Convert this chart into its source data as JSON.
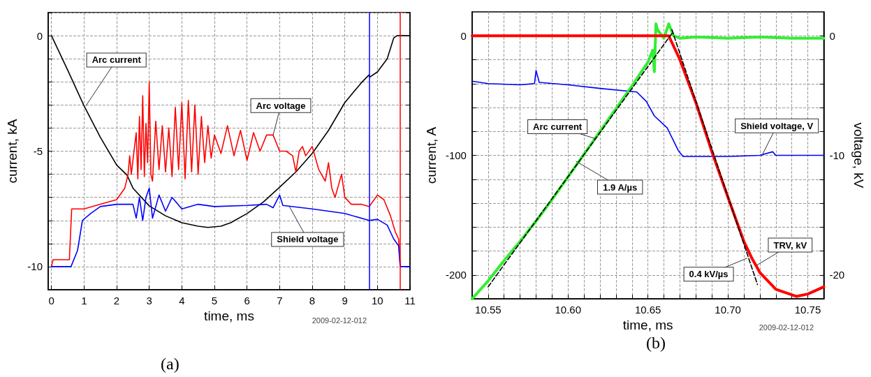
{
  "chart_data": [
    {
      "type": "line",
      "title": "(a)",
      "xlabel": "time, ms",
      "ylabel": "current, kA",
      "xlim": [
        -0.1,
        11
      ],
      "xticks": [
        0,
        1,
        2,
        3,
        4,
        5,
        6,
        7,
        8,
        9,
        10,
        11
      ],
      "ylim": [
        -11,
        1
      ],
      "yticks": [
        {
          "value": 1,
          "label": null
        },
        0,
        {
          "value": -1,
          "label": null
        },
        {
          "value": -2,
          "label": null
        },
        {
          "value": -3,
          "label": null
        },
        {
          "value": -4,
          "label": null
        },
        -5,
        {
          "value": -6,
          "label": null
        },
        {
          "value": -7,
          "label": null
        },
        {
          "value": -8,
          "label": null
        },
        {
          "value": -9,
          "label": null
        },
        -10
      ],
      "grid": true,
      "marker": "none",
      "series": [
        {
          "color": "#000000",
          "x": [
            0,
            0.5,
            1,
            1.5,
            2,
            2.32,
            2.5,
            3,
            3.5,
            4,
            4.5,
            4.8,
            5.2,
            5.5,
            6,
            6.5,
            7,
            7.5,
            8,
            8.5,
            9,
            9.5,
            9.74,
            9.76,
            10,
            10.3,
            10.5,
            10.6,
            11
          ],
          "values": [
            0,
            -1.5,
            -3.04,
            -4.4,
            -5.6,
            -6.04,
            -6.6,
            -7.37,
            -7.8,
            -8.1,
            -8.25,
            -8.3,
            -8.25,
            -8.1,
            -7.7,
            -7.2,
            -6.56,
            -5.9,
            -5.1,
            -4.1,
            -2.9,
            -2.05,
            -1.7,
            -1.8,
            -1.57,
            -1.0,
            -0.1,
            0,
            0
          ]
        },
        {
          "color": "#ff0000",
          "x": [
            0,
            0.05,
            0.55,
            0.62,
            1.0,
            1.5,
            2.0,
            2.25,
            2.35,
            2.4,
            2.45,
            2.6,
            2.65,
            2.7,
            2.75,
            2.8,
            2.85,
            2.9,
            2.95,
            3.0,
            3.05,
            3.1,
            3.2,
            3.3,
            3.4,
            3.5,
            3.6,
            3.7,
            3.8,
            3.9,
            4.0,
            4.1,
            4.2,
            4.3,
            4.4,
            4.5,
            4.6,
            4.7,
            4.8,
            4.9,
            5.0,
            5.2,
            5.4,
            5.6,
            5.8,
            6.0,
            6.2,
            6.4,
            6.6,
            6.8,
            7.0,
            7.2,
            7.4,
            7.5,
            7.6,
            7.7,
            7.8,
            8.0,
            8.2,
            8.4,
            8.5,
            8.6,
            8.7,
            8.8,
            8.9,
            9.0,
            9.2,
            9.5,
            9.75,
            9.9,
            10.0,
            10.2,
            10.4,
            10.55,
            10.65,
            10.7
          ],
          "values": [
            -10,
            -9.7,
            -9.7,
            -7.5,
            -7.5,
            -7.3,
            -7.1,
            -6.6,
            -6.0,
            -5.2,
            -6.0,
            -4.2,
            -6.2,
            -3.5,
            -5.8,
            -2.6,
            -6.1,
            -3.8,
            -5.5,
            -2.0,
            -6.0,
            -6.3,
            -3.7,
            -5.8,
            -3.9,
            -5.9,
            -4.0,
            -6.1,
            -3.1,
            -5.8,
            -2.9,
            -6.2,
            -2.8,
            -5.9,
            -3.0,
            -6.0,
            -3.5,
            -5.5,
            -3.9,
            -5.3,
            -4.3,
            -5.1,
            -3.9,
            -5.2,
            -4.1,
            -5.4,
            -4.2,
            -5.0,
            -4.3,
            -4.3,
            -5.0,
            -5.0,
            -5.2,
            -5.9,
            -5.0,
            -4.8,
            -5.2,
            -4.8,
            -5.8,
            -6.3,
            -5.5,
            -6.6,
            -7.0,
            -6.5,
            -6.0,
            -7.0,
            -7.3,
            -7.3,
            -7.4,
            -7.1,
            -6.9,
            -7.1,
            -7.8,
            -8.5,
            -8.8,
            -10
          ]
        },
        {
          "color": "#0000ff",
          "x": [
            0,
            0.6,
            0.8,
            0.95,
            1.2,
            1.5,
            2,
            2.5,
            2.6,
            2.7,
            2.8,
            2.9,
            3.0,
            3.1,
            3.3,
            3.5,
            3.7,
            4,
            4.5,
            5,
            6,
            6.6,
            6.8,
            7.0,
            7.1,
            8,
            9,
            9.75,
            10,
            10.3,
            10.5,
            10.65,
            10.7,
            11
          ],
          "values": [
            -10,
            -10,
            -9.3,
            -8.0,
            -7.7,
            -7.4,
            -7.3,
            -7.3,
            -7.9,
            -7.0,
            -8.0,
            -7.0,
            -6.6,
            -7.9,
            -6.9,
            -7.6,
            -7.0,
            -7.5,
            -7.3,
            -7.4,
            -7.35,
            -7.3,
            -7.45,
            -6.9,
            -7.35,
            -7.5,
            -7.7,
            -8.0,
            -7.95,
            -8.2,
            -8.8,
            -9.1,
            -10,
            -10
          ]
        }
      ],
      "ref_lines": [
        {
          "axis": "x",
          "value": 9.75,
          "color": "#0000ff"
        },
        {
          "axis": "x",
          "value": 10.7,
          "color": "#ff0000"
        }
      ],
      "annotations": [
        {
          "text": "Arc current",
          "x": 1.05,
          "y": -3.05
        },
        {
          "text": "Arc voltage",
          "x": 6.8,
          "y": -4.3
        },
        {
          "text": "Shield voltage",
          "x": 7.3,
          "y": -7.4
        },
        "2009-02-12-012"
      ]
    },
    {
      "type": "line",
      "title": "(b)",
      "xlabel": "time, ms",
      "ylabel": "current, A",
      "y2label": "voltage, kV",
      "xlim": [
        10.54,
        10.76
      ],
      "xticks": [
        {
          "value": 10.55,
          "label": "10.55"
        },
        {
          "value": 10.56,
          "label": null
        },
        {
          "value": 10.57,
          "label": null
        },
        {
          "value": 10.58,
          "label": null
        },
        {
          "value": 10.59,
          "label": null
        },
        {
          "value": 10.6,
          "label": "10.60"
        },
        {
          "value": 10.61,
          "label": null
        },
        {
          "value": 10.62,
          "label": null
        },
        {
          "value": 10.63,
          "label": null
        },
        {
          "value": 10.64,
          "label": null
        },
        {
          "value": 10.65,
          "label": "10.65"
        },
        {
          "value": 10.66,
          "label": null
        },
        {
          "value": 10.67,
          "label": null
        },
        {
          "value": 10.68,
          "label": null
        },
        {
          "value": 10.69,
          "label": null
        },
        {
          "value": 10.7,
          "label": "10.70"
        },
        {
          "value": 10.71,
          "label": null
        },
        {
          "value": 10.72,
          "label": null
        },
        {
          "value": 10.73,
          "label": null
        },
        {
          "value": 10.74,
          "label": null
        },
        {
          "value": 10.75,
          "label": "10.75"
        }
      ],
      "ylim": [
        -220,
        20
      ],
      "yticks": [
        0,
        {
          "value": -20,
          "label": null
        },
        {
          "value": -40,
          "label": null
        },
        {
          "value": -60,
          "label": null
        },
        {
          "value": -80,
          "label": null
        },
        -100,
        {
          "value": -120,
          "label": null
        },
        {
          "value": -140,
          "label": null
        },
        {
          "value": -160,
          "label": null
        },
        {
          "value": -180,
          "label": null
        },
        -200
      ],
      "y2lim": [
        -22,
        2
      ],
      "y2ticks": [
        0,
        {
          "value": -2,
          "label": null
        },
        {
          "value": -4,
          "label": null
        },
        {
          "value": -6,
          "label": null
        },
        {
          "value": -8,
          "label": null
        },
        -10,
        {
          "value": -12,
          "label": null
        },
        {
          "value": -14,
          "label": null
        },
        {
          "value": -16,
          "label": null
        },
        {
          "value": -18,
          "label": null
        },
        -20
      ],
      "grid": true,
      "marker": "none",
      "series": [
        {
          "color": "#0000ff",
          "x": [
            10.54,
            10.55,
            10.57,
            10.579,
            10.58,
            10.582,
            10.6,
            10.62,
            10.643,
            10.649,
            10.654,
            10.662,
            10.669,
            10.672,
            10.68,
            10.7,
            10.72,
            10.728,
            10.73,
            10.76
          ],
          "values": [
            -38,
            -40,
            -41,
            -40,
            -29,
            -39,
            -41,
            -44,
            -47,
            -55,
            -67,
            -77,
            -96,
            -101,
            -101,
            -101,
            -100,
            -97,
            -100,
            -100
          ]
        },
        {
          "color": "#33ee33",
          "x": [
            10.54,
            10.55,
            10.56,
            10.57,
            10.58,
            10.59,
            10.6,
            10.61,
            10.62,
            10.63,
            10.64,
            10.65,
            10.653,
            10.654,
            10.655,
            10.656,
            10.66,
            10.663,
            10.666,
            10.67,
            10.68,
            10.7,
            10.72,
            10.74,
            10.76
          ],
          "values": [
            -220,
            -205,
            -188,
            -172,
            -155,
            -137,
            -118,
            -99,
            -80,
            -61,
            -42,
            -22,
            -12,
            -30,
            10,
            5,
            -2,
            10,
            0,
            -2,
            -1,
            -2,
            -1,
            -2,
            -2
          ]
        },
        {
          "color": "#ff0000",
          "axis": "y2",
          "x": [
            10.54,
            10.663,
            10.67,
            10.68,
            10.69,
            10.7,
            10.71,
            10.715,
            10.72,
            10.73,
            10.743,
            10.75,
            10.76
          ],
          "values": [
            0,
            0,
            -2,
            -5.6,
            -9.7,
            -13.5,
            -17.2,
            -18.6,
            -19.8,
            -21.2,
            -21.8,
            -21.6,
            -21.0
          ]
        },
        {
          "color": "#000000",
          "line_style": "dashed",
          "x": [
            10.55,
            10.665
          ],
          "values": [
            -210,
            2
          ]
        },
        {
          "color": "#000000",
          "line_style": "dashed",
          "axis": "y2",
          "x": [
            10.665,
            10.7185
          ],
          "values": [
            0.5,
            -20.8
          ]
        }
      ],
      "annotations": [
        {
          "text": "Arc current",
          "x": 10.617,
          "y": -86
        },
        {
          "text": "Shield voltage, V",
          "x": 10.721,
          "y": -101
        },
        {
          "text": "1.9 A/µs",
          "x": 10.605,
          "y": -105
        },
        {
          "text": "0.4 kV/µs",
          "x": 10.712,
          "y": -186
        },
        {
          "text": "TRV, kV",
          "x": 10.718,
          "y": -192
        },
        "2009-02-12-012"
      ]
    }
  ]
}
